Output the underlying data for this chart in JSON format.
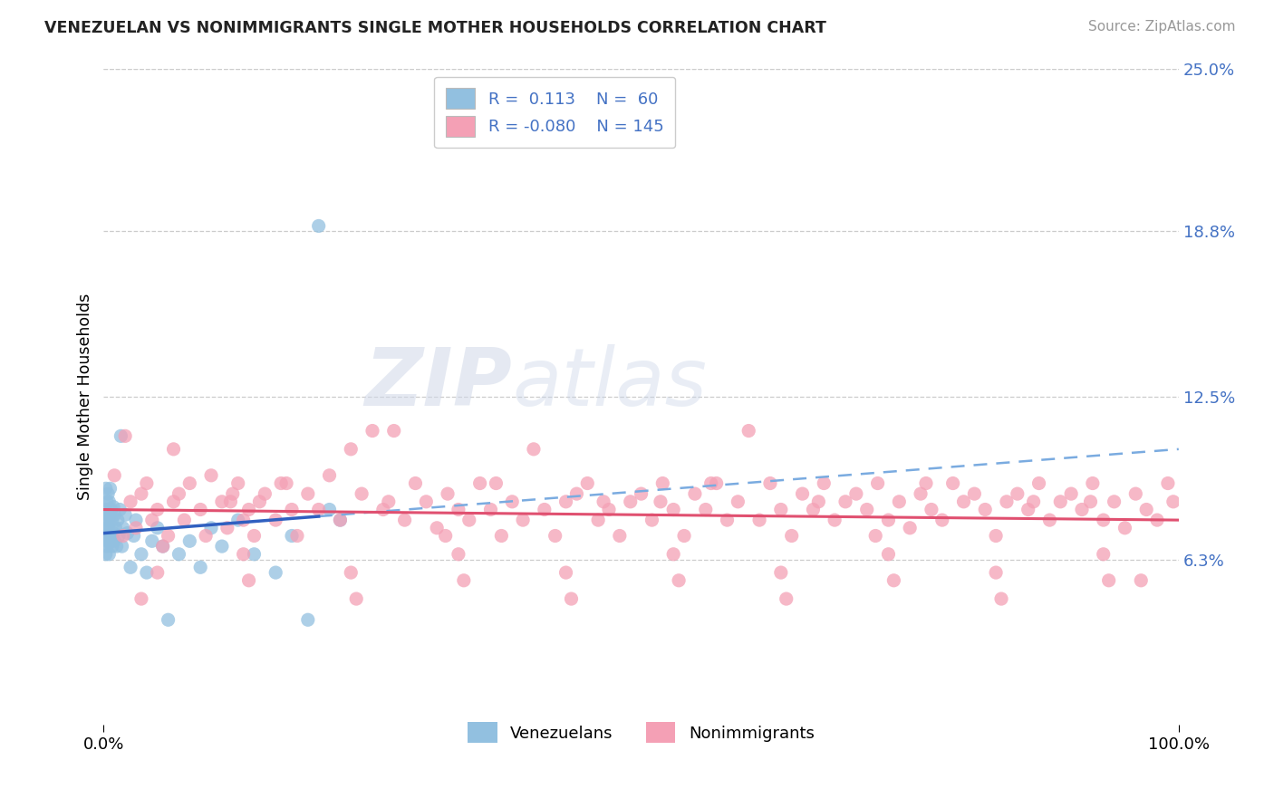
{
  "title": "VENEZUELAN VS NONIMMIGRANTS SINGLE MOTHER HOUSEHOLDS CORRELATION CHART",
  "source": "Source: ZipAtlas.com",
  "ylabel": "Single Mother Households",
  "xmin": 0.0,
  "xmax": 1.0,
  "ymin": 0.0,
  "ymax": 0.25,
  "yticks": [
    0.063,
    0.125,
    0.188,
    0.25
  ],
  "ytick_labels": [
    "6.3%",
    "12.5%",
    "18.8%",
    "25.0%"
  ],
  "xticks": [
    0.0,
    1.0
  ],
  "xtick_labels": [
    "0.0%",
    "100.0%"
  ],
  "blue_color": "#92c0e0",
  "pink_color": "#f4a0b5",
  "line_blue": "#3060c0",
  "line_pink": "#e05070",
  "line_dash_color": "#7aabe0",
  "watermark_zip": "ZIP",
  "watermark_atlas": "atlas",
  "venezuelan_points_x": [
    0.001,
    0.001,
    0.001,
    0.002,
    0.002,
    0.002,
    0.002,
    0.003,
    0.003,
    0.003,
    0.003,
    0.004,
    0.004,
    0.004,
    0.005,
    0.005,
    0.005,
    0.006,
    0.006,
    0.006,
    0.007,
    0.007,
    0.008,
    0.008,
    0.009,
    0.009,
    0.01,
    0.01,
    0.011,
    0.012,
    0.013,
    0.014,
    0.015,
    0.016,
    0.017,
    0.018,
    0.02,
    0.022,
    0.025,
    0.028,
    0.03,
    0.035,
    0.04,
    0.045,
    0.05,
    0.055,
    0.06,
    0.07,
    0.08,
    0.09,
    0.1,
    0.11,
    0.125,
    0.14,
    0.16,
    0.175,
    0.19,
    0.2,
    0.21,
    0.22
  ],
  "venezuelan_points_y": [
    0.075,
    0.07,
    0.08,
    0.065,
    0.072,
    0.082,
    0.09,
    0.068,
    0.075,
    0.085,
    0.078,
    0.07,
    0.08,
    0.088,
    0.065,
    0.075,
    0.085,
    0.07,
    0.08,
    0.09,
    0.072,
    0.082,
    0.068,
    0.078,
    0.073,
    0.083,
    0.07,
    0.08,
    0.075,
    0.068,
    0.078,
    0.072,
    0.082,
    0.11,
    0.068,
    0.075,
    0.08,
    0.073,
    0.06,
    0.072,
    0.078,
    0.065,
    0.058,
    0.07,
    0.075,
    0.068,
    0.04,
    0.065,
    0.07,
    0.06,
    0.075,
    0.068,
    0.078,
    0.065,
    0.058,
    0.072,
    0.04,
    0.19,
    0.082,
    0.078
  ],
  "nonimmigrant_points_x": [
    0.01,
    0.02,
    0.025,
    0.03,
    0.035,
    0.04,
    0.045,
    0.05,
    0.055,
    0.06,
    0.065,
    0.07,
    0.075,
    0.08,
    0.09,
    0.095,
    0.1,
    0.11,
    0.115,
    0.12,
    0.125,
    0.13,
    0.135,
    0.14,
    0.145,
    0.15,
    0.16,
    0.17,
    0.175,
    0.18,
    0.19,
    0.2,
    0.21,
    0.22,
    0.23,
    0.24,
    0.25,
    0.26,
    0.27,
    0.28,
    0.29,
    0.3,
    0.31,
    0.32,
    0.33,
    0.34,
    0.35,
    0.36,
    0.37,
    0.38,
    0.39,
    0.4,
    0.41,
    0.42,
    0.43,
    0.44,
    0.45,
    0.46,
    0.47,
    0.48,
    0.49,
    0.5,
    0.51,
    0.52,
    0.53,
    0.54,
    0.55,
    0.56,
    0.57,
    0.58,
    0.59,
    0.6,
    0.61,
    0.62,
    0.63,
    0.64,
    0.65,
    0.66,
    0.67,
    0.68,
    0.69,
    0.7,
    0.71,
    0.72,
    0.73,
    0.74,
    0.75,
    0.76,
    0.77,
    0.78,
    0.79,
    0.8,
    0.81,
    0.82,
    0.83,
    0.84,
    0.85,
    0.86,
    0.87,
    0.88,
    0.89,
    0.9,
    0.91,
    0.92,
    0.93,
    0.94,
    0.95,
    0.96,
    0.97,
    0.98,
    0.99,
    0.995,
    0.05,
    0.13,
    0.23,
    0.33,
    0.43,
    0.53,
    0.63,
    0.73,
    0.83,
    0.93,
    0.035,
    0.135,
    0.235,
    0.335,
    0.435,
    0.535,
    0.635,
    0.735,
    0.835,
    0.935,
    0.065,
    0.165,
    0.265,
    0.365,
    0.465,
    0.565,
    0.665,
    0.765,
    0.865,
    0.965,
    0.018,
    0.118,
    0.318,
    0.518,
    0.718,
    0.918
  ],
  "nonimmigrant_points_y": [
    0.095,
    0.11,
    0.085,
    0.075,
    0.088,
    0.092,
    0.078,
    0.082,
    0.068,
    0.072,
    0.105,
    0.088,
    0.078,
    0.092,
    0.082,
    0.072,
    0.095,
    0.085,
    0.075,
    0.088,
    0.092,
    0.078,
    0.082,
    0.072,
    0.085,
    0.088,
    0.078,
    0.092,
    0.082,
    0.072,
    0.088,
    0.082,
    0.095,
    0.078,
    0.105,
    0.088,
    0.112,
    0.082,
    0.112,
    0.078,
    0.092,
    0.085,
    0.075,
    0.088,
    0.082,
    0.078,
    0.092,
    0.082,
    0.072,
    0.085,
    0.078,
    0.105,
    0.082,
    0.072,
    0.085,
    0.088,
    0.092,
    0.078,
    0.082,
    0.072,
    0.085,
    0.088,
    0.078,
    0.092,
    0.082,
    0.072,
    0.088,
    0.082,
    0.092,
    0.078,
    0.085,
    0.112,
    0.078,
    0.092,
    0.082,
    0.072,
    0.088,
    0.082,
    0.092,
    0.078,
    0.085,
    0.088,
    0.082,
    0.092,
    0.078,
    0.085,
    0.075,
    0.088,
    0.082,
    0.078,
    0.092,
    0.085,
    0.088,
    0.082,
    0.072,
    0.085,
    0.088,
    0.082,
    0.092,
    0.078,
    0.085,
    0.088,
    0.082,
    0.092,
    0.078,
    0.085,
    0.075,
    0.088,
    0.082,
    0.078,
    0.092,
    0.085,
    0.058,
    0.065,
    0.058,
    0.065,
    0.058,
    0.065,
    0.058,
    0.065,
    0.058,
    0.065,
    0.048,
    0.055,
    0.048,
    0.055,
    0.048,
    0.055,
    0.048,
    0.055,
    0.048,
    0.055,
    0.085,
    0.092,
    0.085,
    0.092,
    0.085,
    0.092,
    0.085,
    0.092,
    0.085,
    0.055,
    0.072,
    0.085,
    0.072,
    0.085,
    0.072,
    0.085
  ],
  "blue_trend_x_start": 0.0,
  "blue_trend_x_solid_end": 0.2,
  "blue_trend_x_end": 1.0,
  "blue_trend_y_start": 0.073,
  "blue_trend_y_end": 0.105,
  "pink_trend_y_start": 0.082,
  "pink_trend_y_end": 0.078
}
